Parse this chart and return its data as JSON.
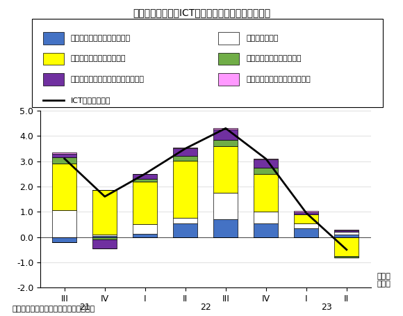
{
  "title": "輸入総額に占めるICT関連輸入（品目別）の寄与度",
  "xlabel_periods": [
    "III",
    "IV",
    "I",
    "II",
    "III",
    "IV",
    "I",
    "II"
  ],
  "ylabel": "(%)",
  "ylim": [
    -2.0,
    5.0
  ],
  "yticks": [
    -2.0,
    -1.0,
    0.0,
    1.0,
    2.0,
    3.0,
    4.0,
    5.0
  ],
  "source": "（出所）財務省「貿易統計」から作成。",
  "categories": [
    0,
    1,
    2,
    3,
    4,
    5,
    6,
    7
  ],
  "series": {
    "computer": {
      "label": "電算機類（含部品）・寄与度",
      "color": "#4472C4",
      "edgecolor": "#000000",
      "values": [
        -0.2,
        0.05,
        0.12,
        0.55,
        0.7,
        0.55,
        0.35,
        0.1
      ]
    },
    "telecom": {
      "label": "通信機・寄与度",
      "color": "#FFFFFF",
      "edgecolor": "#000000",
      "values": [
        1.05,
        0.05,
        0.38,
        0.22,
        1.05,
        0.45,
        0.2,
        0.1
      ]
    },
    "semiconductor": {
      "label": "半導体等電子部品・寄与度",
      "color": "#FFFF00",
      "edgecolor": "#000000",
      "values": [
        1.85,
        1.75,
        1.7,
        2.25,
        1.85,
        1.5,
        0.35,
        -0.75
      ]
    },
    "semi_mfg": {
      "label": "半導体等製造装置・寄与度",
      "color": "#70AD47",
      "edgecolor": "#000000",
      "values": [
        0.25,
        -0.1,
        0.1,
        0.2,
        0.25,
        0.25,
        0.0,
        -0.05
      ]
    },
    "audio_video": {
      "label": "音響・映像機器（含部品）・寄与度",
      "color": "#7030A0",
      "edgecolor": "#000000",
      "values": [
        0.15,
        -0.35,
        0.2,
        0.28,
        0.4,
        0.32,
        0.08,
        0.05
      ]
    },
    "recording": {
      "label": "記録媒体（含記録済）・寄与度",
      "color": "#FF99FF",
      "edgecolor": "#000000",
      "values": [
        0.05,
        0.0,
        0.0,
        0.05,
        0.05,
        0.02,
        0.05,
        0.05
      ]
    }
  },
  "line": {
    "label": "ICT関連・寄与度",
    "color": "#000000",
    "values": [
      3.1,
      1.6,
      2.5,
      3.5,
      4.3,
      3.09,
      0.95,
      -0.5
    ]
  },
  "bar_width": 0.6,
  "year_labels": [
    [
      "21",
      0.5
    ],
    [
      "22",
      3.5
    ],
    [
      "23",
      6.5
    ]
  ],
  "legend_row1": [
    "電算機類（含部品）・寄与度",
    "通信機・寄与度"
  ],
  "legend_row2": [
    "半導体等電子部品・寄与度",
    "半導体等製造装置・寄与度"
  ],
  "legend_row3": [
    "音響・映像機器（含部品）・寄与度",
    "記録媒体（含記録済）・寄与度"
  ],
  "legend_row4": [
    "ICT関連・寄与度"
  ]
}
